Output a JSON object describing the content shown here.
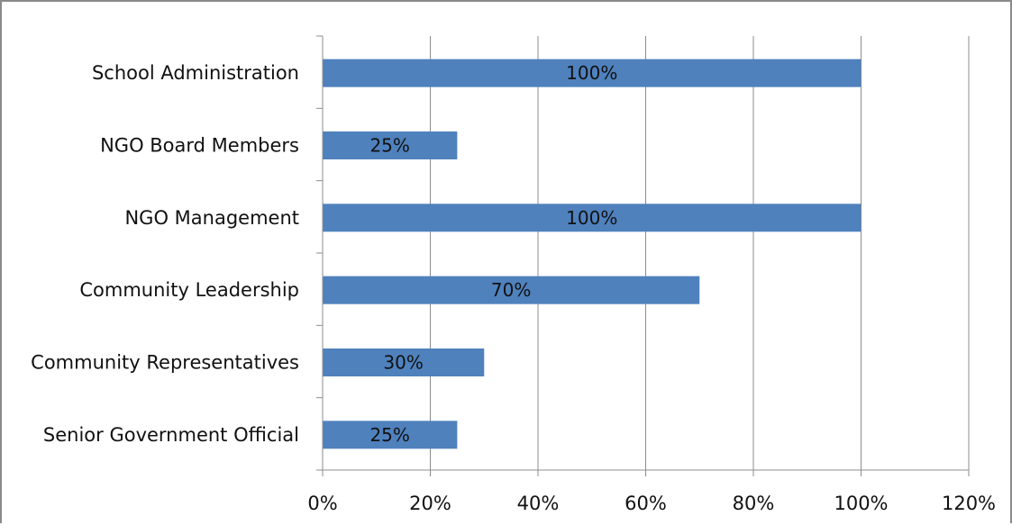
{
  "chart_data": {
    "type": "bar",
    "orientation": "horizontal",
    "categories": [
      "School Administration",
      "NGO Board Members",
      "NGO Management",
      "Community Leadership",
      "Community Representatives",
      "Senior Government Official"
    ],
    "values": [
      100,
      25,
      100,
      70,
      30,
      25
    ],
    "data_labels": [
      "100%",
      "25%",
      "100%",
      "70%",
      "30%",
      "25%"
    ],
    "xlim": [
      0,
      120
    ],
    "x_ticks": [
      0,
      20,
      40,
      60,
      80,
      100,
      120
    ],
    "x_tick_labels": [
      "0%",
      "20%",
      "40%",
      "60%",
      "80%",
      "100%",
      "120%"
    ],
    "title": "",
    "xlabel": "",
    "ylabel": "",
    "grid": "vertical",
    "legend": "none",
    "bar_color": "#4f81bd"
  }
}
